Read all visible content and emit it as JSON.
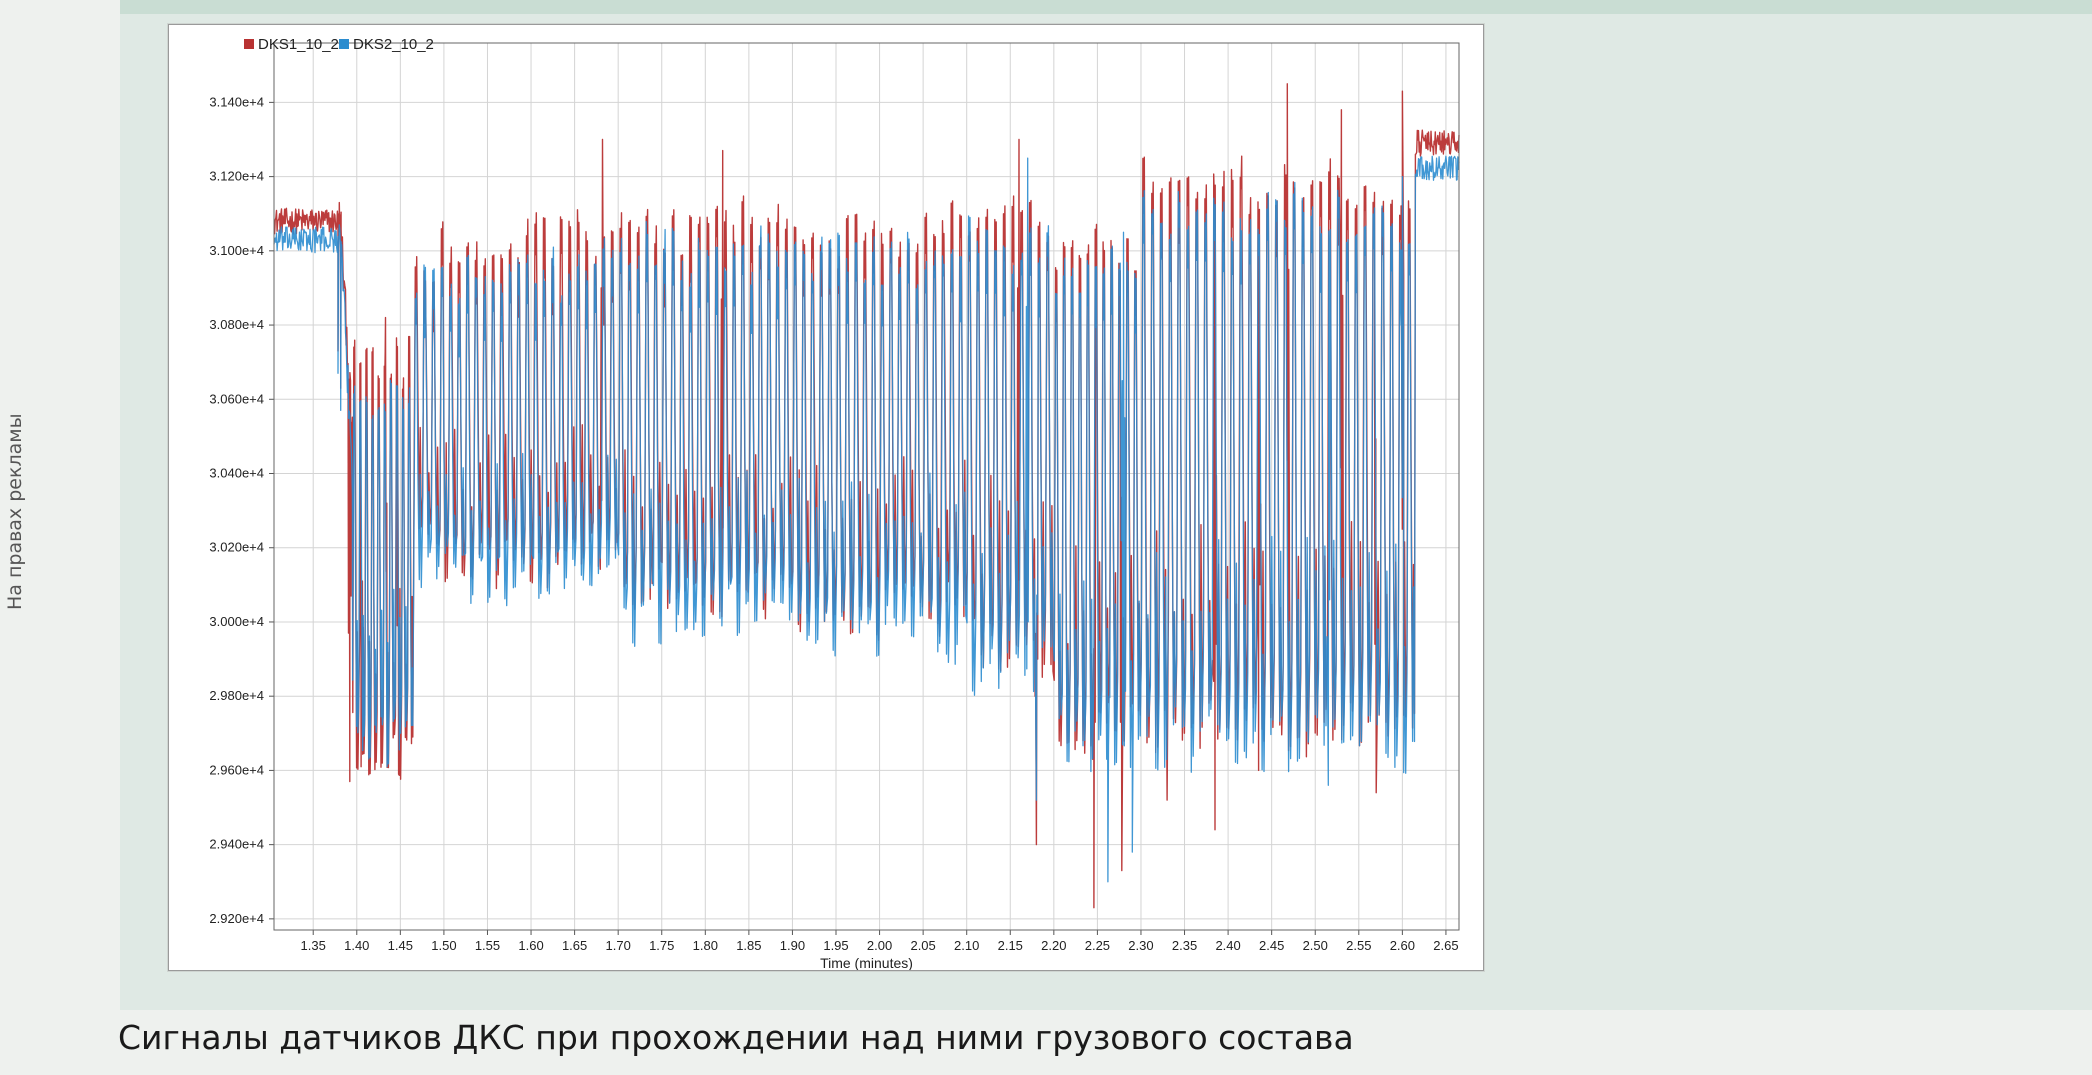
{
  "side_note": "На правах рекламы",
  "caption": "Сигналы датчиков ДКС при прохождении над ними грузового состава",
  "chart_data": {
    "type": "line",
    "title": "",
    "xlabel": "Time (minutes)",
    "ylabel": "",
    "xlim": [
      1.305,
      2.665
    ],
    "ylim": [
      29170,
      31560
    ],
    "grid": true,
    "legend_position": "top-left",
    "x_ticks": [
      1.35,
      1.4,
      1.45,
      1.5,
      1.55,
      1.6,
      1.65,
      1.7,
      1.75,
      1.8,
      1.85,
      1.9,
      1.95,
      2.0,
      2.05,
      2.1,
      2.15,
      2.2,
      2.25,
      2.3,
      2.35,
      2.4,
      2.45,
      2.5,
      2.55,
      2.6,
      2.65
    ],
    "x_tick_labels": [
      "1.35",
      "1.40",
      "1.45",
      "1.50",
      "1.55",
      "1.60",
      "1.65",
      "1.70",
      "1.75",
      "1.80",
      "1.85",
      "1.90",
      "1.95",
      "2.00",
      "2.05",
      "2.10",
      "2.15",
      "2.20",
      "2.25",
      "2.30",
      "2.35",
      "2.40",
      "2.45",
      "2.50",
      "2.55",
      "2.60",
      "2.65"
    ],
    "y_ticks": [
      29200,
      29400,
      29600,
      29800,
      30000,
      30200,
      30400,
      30600,
      30800,
      31000,
      31200,
      31400
    ],
    "y_tick_labels": [
      "2.920e+4",
      "2.940e+4",
      "2.960e+4",
      "2.980e+4",
      "3.000e+4",
      "3.020e+4",
      "3.040e+4",
      "3.060e+4",
      "3.080e+4",
      "3.100e+4",
      "3.120e+4",
      "3.140e+4"
    ],
    "series": [
      {
        "name": "DKS1_10_2",
        "color": "#b83232",
        "segments": [
          {
            "x0": 1.305,
            "x1": 1.382,
            "cycles": 0,
            "hi": 31080,
            "lo": 31080
          },
          {
            "x0": 1.382,
            "x1": 1.395,
            "cycles": 0,
            "hi": 31050,
            "lo": 30500
          },
          {
            "x0": 1.395,
            "x1": 1.465,
            "cycles": 10,
            "hi": 30720,
            "lo": 29620
          },
          {
            "x0": 1.465,
            "x1": 1.495,
            "cycles": 3,
            "hi": 30950,
            "lo": 30220
          },
          {
            "x0": 1.495,
            "x1": 1.7,
            "cycles": 21,
            "hi": 31050,
            "lo": 30150
          },
          {
            "x0": 1.7,
            "x1": 1.9,
            "cycles": 20,
            "hi": 31100,
            "lo": 30050
          },
          {
            "x0": 1.9,
            "x1": 2.1,
            "cycles": 20,
            "hi": 31080,
            "lo": 30000
          },
          {
            "x0": 2.1,
            "x1": 2.2,
            "cycles": 10,
            "hi": 31120,
            "lo": 29900
          },
          {
            "x0": 2.2,
            "x1": 2.3,
            "cycles": 11,
            "hi": 31020,
            "lo": 29700
          },
          {
            "x0": 2.3,
            "x1": 2.615,
            "cycles": 31,
            "hi": 31200,
            "lo": 29700
          },
          {
            "x0": 2.615,
            "x1": 2.665,
            "cycles": 0,
            "hi": 31290,
            "lo": 31290
          }
        ],
        "peaks": [
          {
            "x": 1.38,
            "y": 31130
          },
          {
            "x": 1.433,
            "y": 30820
          },
          {
            "x": 1.682,
            "y": 31300
          },
          {
            "x": 1.82,
            "y": 31270
          },
          {
            "x": 2.16,
            "y": 31300
          },
          {
            "x": 2.468,
            "y": 31450
          },
          {
            "x": 2.53,
            "y": 31380
          },
          {
            "x": 2.6,
            "y": 31430
          }
        ],
        "troughs": [
          {
            "x": 1.392,
            "y": 29570
          },
          {
            "x": 1.405,
            "y": 29610
          },
          {
            "x": 1.448,
            "y": 29590
          },
          {
            "x": 2.18,
            "y": 29400
          },
          {
            "x": 2.246,
            "y": 29230
          },
          {
            "x": 2.278,
            "y": 29330
          },
          {
            "x": 2.33,
            "y": 29520
          },
          {
            "x": 2.385,
            "y": 29440
          },
          {
            "x": 2.435,
            "y": 29600
          },
          {
            "x": 2.57,
            "y": 29540
          }
        ]
      },
      {
        "name": "DKS2_10_2",
        "color": "#2b8ccf",
        "segments": [
          {
            "x0": 1.305,
            "x1": 1.382,
            "cycles": 0,
            "hi": 31030,
            "lo": 31030
          },
          {
            "x0": 1.382,
            "x1": 1.395,
            "cycles": 0,
            "hi": 31000,
            "lo": 30400
          },
          {
            "x0": 1.395,
            "x1": 1.465,
            "cycles": 10,
            "hi": 30650,
            "lo": 29650
          },
          {
            "x0": 1.465,
            "x1": 1.495,
            "cycles": 3,
            "hi": 30900,
            "lo": 30150
          },
          {
            "x0": 1.495,
            "x1": 1.7,
            "cycles": 21,
            "hi": 30980,
            "lo": 30100
          },
          {
            "x0": 1.7,
            "x1": 1.9,
            "cycles": 20,
            "hi": 31020,
            "lo": 30000
          },
          {
            "x0": 1.9,
            "x1": 2.1,
            "cycles": 20,
            "hi": 31000,
            "lo": 29950
          },
          {
            "x0": 2.1,
            "x1": 2.2,
            "cycles": 10,
            "hi": 31060,
            "lo": 29850
          },
          {
            "x0": 2.2,
            "x1": 2.3,
            "cycles": 11,
            "hi": 30950,
            "lo": 29650
          },
          {
            "x0": 2.3,
            "x1": 2.615,
            "cycles": 31,
            "hi": 31120,
            "lo": 29650
          },
          {
            "x0": 2.615,
            "x1": 2.665,
            "cycles": 0,
            "hi": 31220,
            "lo": 31220
          }
        ],
        "peaks": [
          {
            "x": 1.38,
            "y": 31070
          },
          {
            "x": 2.17,
            "y": 31250
          },
          {
            "x": 2.28,
            "y": 31050
          },
          {
            "x": 2.6,
            "y": 31200
          }
        ],
        "troughs": [
          {
            "x": 2.18,
            "y": 29520
          },
          {
            "x": 2.262,
            "y": 29300
          },
          {
            "x": 2.29,
            "y": 29380
          },
          {
            "x": 2.515,
            "y": 29560
          }
        ]
      }
    ]
  }
}
